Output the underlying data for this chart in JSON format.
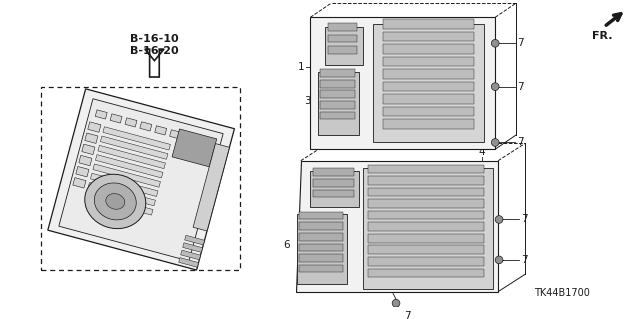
{
  "bg_color": "#ffffff",
  "line_color": "#1a1a1a",
  "fig_width": 6.4,
  "fig_height": 3.19,
  "dpi": 100,
  "labels": {
    "b1610": "B-16-10",
    "b1620": "B-16-20",
    "fr": "FR.",
    "part_code": "TK44B1700"
  },
  "lw": 0.7,
  "gray_part": "#c8c8c8",
  "dark_part": "#888888"
}
